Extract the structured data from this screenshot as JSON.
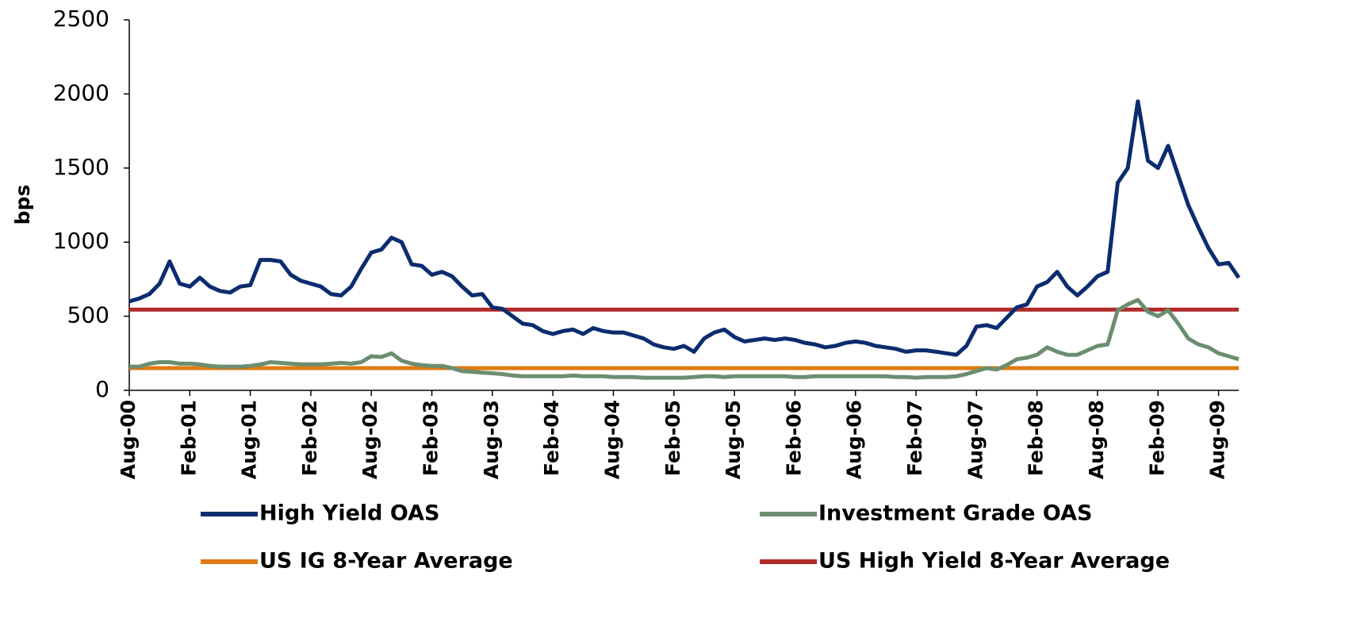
{
  "chart_data": {
    "type": "line",
    "y_label": "bps",
    "categories": [
      "Aug-00",
      null,
      null,
      null,
      null,
      null,
      "Feb-01",
      null,
      null,
      null,
      null,
      null,
      "Aug-01",
      null,
      null,
      null,
      null,
      null,
      "Feb-02",
      null,
      null,
      null,
      null,
      null,
      "Aug-02",
      null,
      null,
      null,
      null,
      null,
      "Feb-03",
      null,
      null,
      null,
      null,
      null,
      "Aug-03",
      null,
      null,
      null,
      null,
      null,
      "Feb-04",
      null,
      null,
      null,
      null,
      null,
      "Aug-04",
      null,
      null,
      null,
      null,
      null,
      "Feb-05",
      null,
      null,
      null,
      null,
      null,
      "Aug-05",
      null,
      null,
      null,
      null,
      null,
      "Feb-06",
      null,
      null,
      null,
      null,
      null,
      "Aug-06",
      null,
      null,
      null,
      null,
      null,
      "Feb-07",
      null,
      null,
      null,
      null,
      null,
      "Aug-07",
      null,
      null,
      null,
      null,
      null,
      "Feb-08",
      null,
      null,
      null,
      null,
      null,
      "Aug-08",
      null,
      null,
      null,
      null,
      null,
      "Feb-09",
      null,
      null,
      null,
      null,
      null,
      "Aug-09",
      null,
      null
    ],
    "ylim": [
      0,
      2500
    ],
    "yticks": [
      0,
      500,
      1000,
      1500,
      2000,
      2500
    ],
    "grid": false,
    "series": [
      {
        "name": "High Yield OAS",
        "color": "#0b2c6e",
        "values": [
          600,
          620,
          650,
          720,
          870,
          720,
          700,
          760,
          700,
          670,
          660,
          700,
          710,
          880,
          880,
          870,
          780,
          740,
          720,
          700,
          650,
          640,
          700,
          820,
          930,
          950,
          1030,
          1000,
          850,
          840,
          780,
          800,
          770,
          700,
          640,
          650,
          560,
          550,
          500,
          450,
          440,
          400,
          380,
          400,
          410,
          380,
          420,
          400,
          390,
          390,
          370,
          350,
          310,
          290,
          280,
          300,
          260,
          350,
          390,
          410,
          360,
          330,
          340,
          350,
          340,
          350,
          340,
          320,
          310,
          290,
          300,
          320,
          330,
          320,
          300,
          290,
          280,
          260,
          270,
          270,
          260,
          250,
          240,
          300,
          430,
          440,
          420,
          490,
          560,
          580,
          700,
          730,
          800,
          700,
          640,
          700,
          770,
          800,
          1400,
          1500,
          1950,
          1550,
          1500,
          1650,
          1450,
          1250,
          1100,
          960,
          850,
          860,
          760
        ]
      },
      {
        "name": "Investment Grade OAS",
        "color": "#6b8e70",
        "values": [
          160,
          160,
          180,
          190,
          190,
          180,
          180,
          175,
          165,
          160,
          160,
          160,
          165,
          175,
          190,
          185,
          180,
          175,
          175,
          175,
          180,
          185,
          180,
          190,
          230,
          225,
          250,
          200,
          180,
          170,
          165,
          165,
          150,
          130,
          125,
          120,
          115,
          110,
          100,
          95,
          95,
          95,
          95,
          95,
          100,
          95,
          95,
          95,
          90,
          90,
          90,
          85,
          85,
          85,
          85,
          85,
          90,
          95,
          95,
          90,
          95,
          95,
          95,
          95,
          95,
          95,
          90,
          90,
          95,
          95,
          95,
          95,
          95,
          95,
          95,
          95,
          90,
          90,
          85,
          90,
          90,
          90,
          95,
          110,
          130,
          150,
          140,
          170,
          210,
          220,
          240,
          290,
          260,
          240,
          240,
          270,
          300,
          310,
          540,
          580,
          610,
          530,
          500,
          540,
          450,
          350,
          310,
          290,
          250,
          230,
          210
        ]
      },
      {
        "name": "US IG 8-Year Average",
        "color": "#e07a12",
        "values": [
          150,
          150,
          150,
          150,
          150,
          150,
          150,
          150,
          150,
          150,
          150,
          150,
          150,
          150,
          150,
          150,
          150,
          150,
          150,
          150,
          150,
          150,
          150,
          150,
          150,
          150,
          150,
          150,
          150,
          150,
          150,
          150,
          150,
          150,
          150,
          150,
          150,
          150,
          150,
          150,
          150,
          150,
          150,
          150,
          150,
          150,
          150,
          150,
          150,
          150,
          150,
          150,
          150,
          150,
          150,
          150,
          150,
          150,
          150,
          150,
          150,
          150,
          150,
          150,
          150,
          150,
          150,
          150,
          150,
          150,
          150,
          150,
          150,
          150,
          150,
          150,
          150,
          150,
          150,
          150,
          150,
          150,
          150,
          150,
          150,
          150,
          150,
          150,
          150,
          150,
          150,
          150,
          150,
          150,
          150,
          150,
          150,
          150,
          150,
          150,
          150,
          150,
          150,
          150,
          150,
          150,
          150,
          150,
          150,
          150,
          150
        ]
      },
      {
        "name": "US High Yield 8-Year Average",
        "color": "#b02a2a",
        "values": [
          545,
          545,
          545,
          545,
          545,
          545,
          545,
          545,
          545,
          545,
          545,
          545,
          545,
          545,
          545,
          545,
          545,
          545,
          545,
          545,
          545,
          545,
          545,
          545,
          545,
          545,
          545,
          545,
          545,
          545,
          545,
          545,
          545,
          545,
          545,
          545,
          545,
          545,
          545,
          545,
          545,
          545,
          545,
          545,
          545,
          545,
          545,
          545,
          545,
          545,
          545,
          545,
          545,
          545,
          545,
          545,
          545,
          545,
          545,
          545,
          545,
          545,
          545,
          545,
          545,
          545,
          545,
          545,
          545,
          545,
          545,
          545,
          545,
          545,
          545,
          545,
          545,
          545,
          545,
          545,
          545,
          545,
          545,
          545,
          545,
          545,
          545,
          545,
          545,
          545,
          545,
          545,
          545,
          545,
          545,
          545,
          545,
          545,
          545,
          545,
          545,
          545,
          545,
          545,
          545,
          545,
          545,
          545,
          545,
          545,
          545
        ]
      }
    ]
  }
}
